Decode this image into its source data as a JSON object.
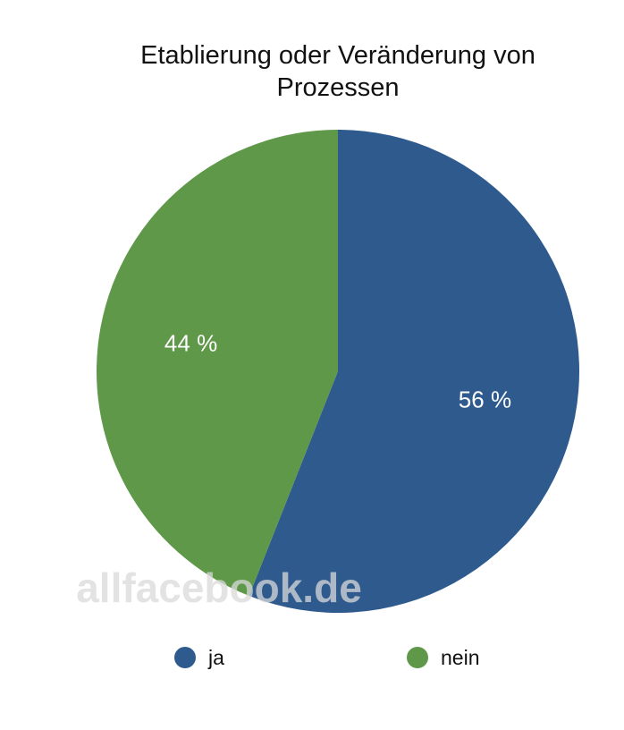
{
  "chart_data": {
    "type": "pie",
    "title": "Etablierung oder Veränderung von Prozessen",
    "slices": [
      {
        "label": "ja",
        "value": 56,
        "display": "56 %",
        "color": "#2e5a8e"
      },
      {
        "label": "nein",
        "value": 44,
        "display": "44 %",
        "color": "#5e9848"
      }
    ],
    "legend_position": "bottom",
    "watermark": "allfacebook.de"
  }
}
